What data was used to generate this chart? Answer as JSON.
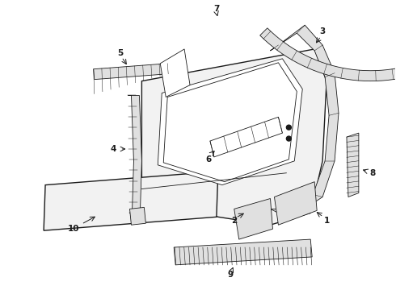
{
  "background_color": "#ffffff",
  "line_color": "#1a1a1a",
  "figure_width": 4.9,
  "figure_height": 3.6,
  "dpi": 100,
  "lw_door": 1.0,
  "lw_strip": 0.8,
  "lw_thin": 0.6,
  "door_face": "#f2f2f2",
  "strip_face": "#e0e0e0",
  "strip_hatch": "#c0c0c0"
}
